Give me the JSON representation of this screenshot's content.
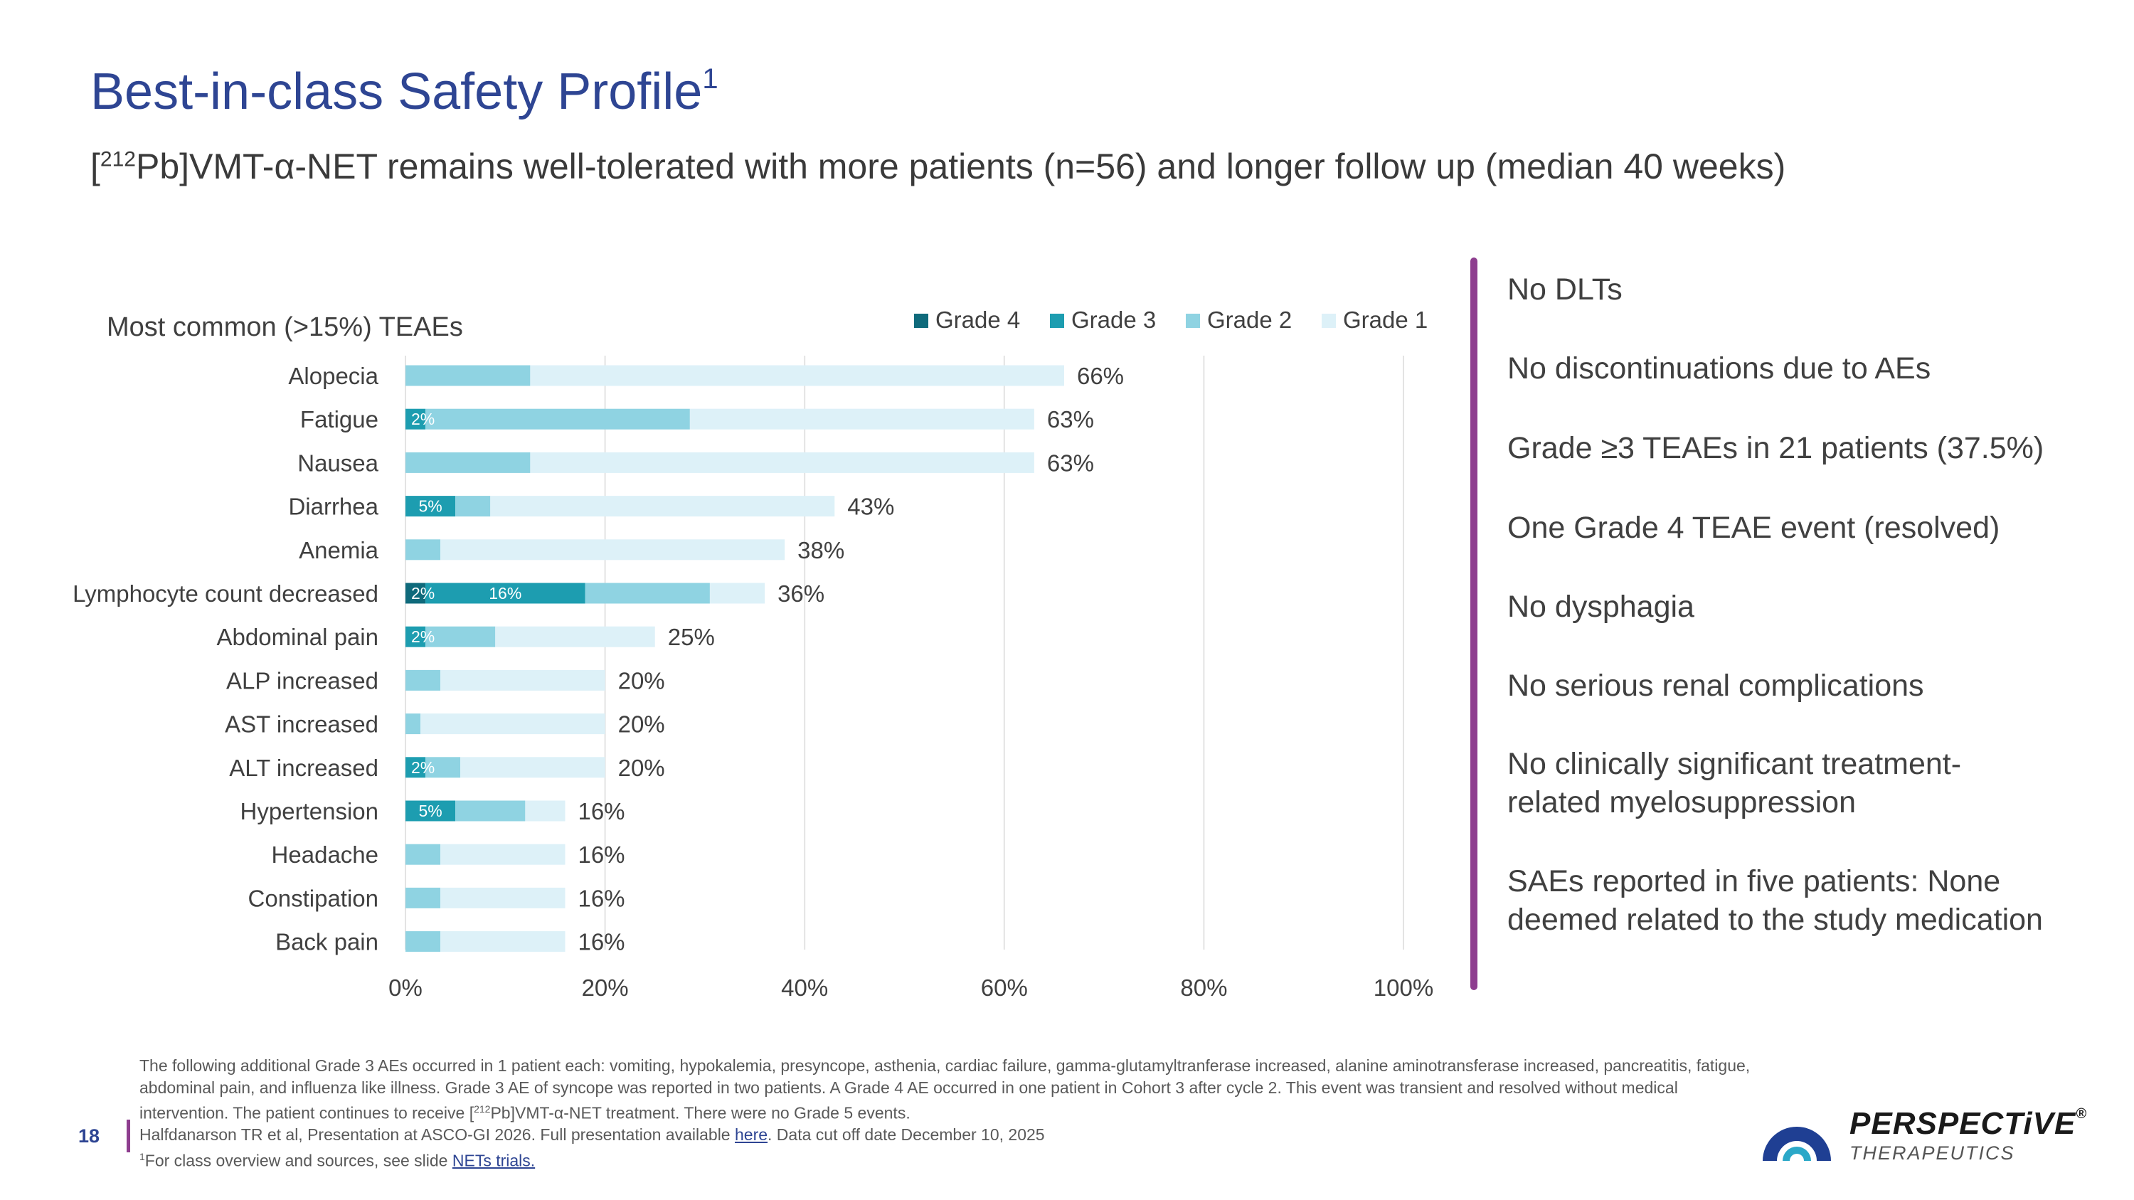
{
  "title": "Best-in-class Safety Profile",
  "title_sup": "1",
  "subtitle_pre": "[",
  "subtitle_sup": "212",
  "subtitle_post": "Pb]VMT-α-NET remains well-tolerated with more patients (n=56) and longer follow up (median 40 weeks)",
  "highlights": [
    "No DLTs",
    "No discontinuations due to AEs",
    "Grade ≥3 TEAEs in 21 patients (37.5%)",
    "One Grade 4 TEAE event (resolved)",
    "No dysphagia",
    "No serious renal complications",
    "No clinically significant treatment-related myelosuppression",
    "SAEs reported in five patients: None deemed related to the study medication"
  ],
  "footnotes": {
    "line1": "The following additional Grade 3 AEs occurred in 1 patient each: vomiting, hypokalemia, presyncope, asthenia, cardiac failure, gamma-glutamyltranferase increased, alanine aminotransferase increased, pancreatitis, fatigue, abdominal pain, and influenza like illness. Grade 3 AE of syncope was reported in two patients. A Grade 4 AE occurred in one patient in Cohort 3 after cycle 2. This event was transient and resolved without medical intervention. The patient continues to receive [",
    "line1_sup": "212",
    "line1_end": "Pb]VMT-α-NET treatment. There were no Grade 5 events.",
    "line2_pre": "Halfdanarson TR et al, Presentation at ASCO-GI 2026. Full presentation available ",
    "line2_link": "here",
    "line2_post": ". Data cut off date December 10, 2025",
    "line3_sup": "1",
    "line3_pre": "For class overview and sources, see slide ",
    "line3_link": "NETs trials."
  },
  "page_number": "18",
  "brand": {
    "name": "PERSPECTiVE",
    "reg": "®",
    "tagline": "THERAPEUTICS"
  },
  "colors": {
    "grade4": "#0F6A7B",
    "grade3": "#1D9DB0",
    "grade2": "#8FD3E2",
    "grade1": "#DDF1F8",
    "accent": "#8E3E8F",
    "title": "#2E4593"
  },
  "chart_data": {
    "type": "bar",
    "orientation": "horizontal",
    "stacked": true,
    "title": "Most common (>15%) TEAEs",
    "categories": [
      "Alopecia",
      "Fatigue",
      "Nausea",
      "Diarrhea",
      "Anemia",
      "Lymphocyte count decreased",
      "Abdominal pain",
      "ALP increased",
      "AST increased",
      "ALT increased",
      "Hypertension",
      "Headache",
      "Constipation",
      "Back pain"
    ],
    "series": [
      {
        "name": "Grade 4",
        "values": [
          0,
          0,
          0,
          0,
          0,
          2,
          0,
          0,
          0,
          0,
          0,
          0,
          0,
          0
        ]
      },
      {
        "name": "Grade 3",
        "values": [
          0,
          2,
          0,
          5,
          0,
          16,
          2,
          0,
          0,
          2,
          5,
          0,
          0,
          0
        ]
      },
      {
        "name": "Grade 2",
        "values": [
          12.5,
          26.5,
          12.5,
          3.5,
          3.5,
          12.5,
          7,
          3.5,
          1.5,
          3.5,
          7,
          3.5,
          3.5,
          3.5
        ]
      },
      {
        "name": "Grade 1",
        "values": [
          53.5,
          34.5,
          50.5,
          34.5,
          34.5,
          5.5,
          16,
          16.5,
          18.5,
          14.5,
          4,
          12.5,
          12.5,
          12.5
        ]
      }
    ],
    "totals": [
      "66%",
      "63%",
      "63%",
      "43%",
      "38%",
      "36%",
      "25%",
      "20%",
      "20%",
      "20%",
      "16%",
      "16%",
      "16%",
      "16%"
    ],
    "segment_labels": [
      {
        "row": 1,
        "series": 1,
        "label": "2%"
      },
      {
        "row": 3,
        "series": 1,
        "label": "5%"
      },
      {
        "row": 5,
        "series": 0,
        "label": "2%"
      },
      {
        "row": 5,
        "series": 1,
        "label": "16%"
      },
      {
        "row": 6,
        "series": 1,
        "label": "2%"
      },
      {
        "row": 9,
        "series": 1,
        "label": "2%"
      },
      {
        "row": 10,
        "series": 1,
        "label": "5%"
      }
    ],
    "xlim": [
      0,
      100
    ],
    "xticks": [
      "0%",
      "20%",
      "40%",
      "60%",
      "80%",
      "100%"
    ],
    "grid": true,
    "legend": "top-right"
  }
}
